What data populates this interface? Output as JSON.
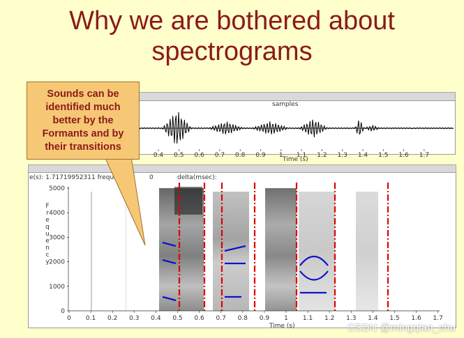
{
  "slide": {
    "title_line1": "Why we are bothered about",
    "title_line2": "spectrograms",
    "callout_lines": [
      "Sounds can be",
      "identified much",
      "better by the",
      "Formants and by",
      "their transitions"
    ],
    "watermark": "CSDN @mingqian_chu"
  },
  "waveform_panel": {
    "header_label": "samples",
    "x_ticks": [
      "0.4",
      "0.5",
      "0.6",
      "0.7",
      "0.8",
      "0.9",
      "1",
      "1.1",
      "1.2",
      "1.3",
      "1.4",
      "1.5",
      "1.6",
      "1.7"
    ],
    "x_label": "Time (s)"
  },
  "spectrogram_panel": {
    "status_text": "e(s): 1.71719952311  freque",
    "status_zero": "0",
    "status_delta": "delta(msec):",
    "y_axis_label": "Frequency",
    "y_ticks": [
      "5000",
      "4000",
      "3000",
      "2000",
      "1000",
      "0"
    ],
    "x_ticks": [
      "0",
      "0.1",
      "0.2",
      "0.3",
      "0.4",
      "0.5",
      "0.6",
      "0.7",
      "0.8",
      "0.9",
      "1",
      "1.1",
      "1.2",
      "1.3",
      "1.4",
      "1.5",
      "1.6",
      "1.7"
    ],
    "x_label": "Time (s)"
  },
  "colors": {
    "title": "#8b1a1a",
    "background": "#ffffcc",
    "callout": "#f6c875",
    "boundary_lines": "#e00000",
    "formant_tracks": "#1010cc"
  }
}
